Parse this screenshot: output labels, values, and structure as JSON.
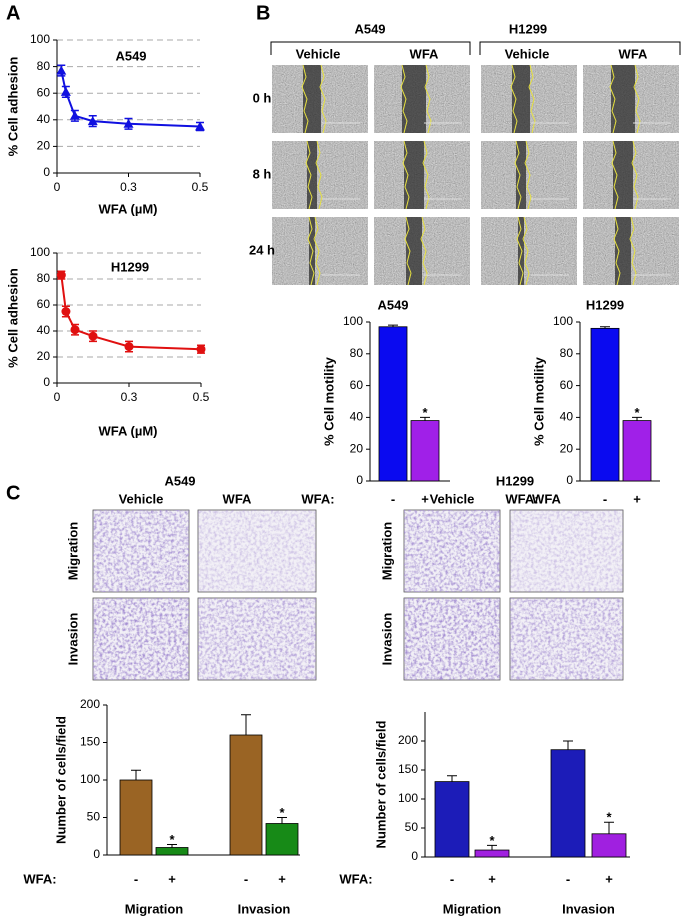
{
  "figure": {
    "panel_labels": [
      "A",
      "B",
      "C"
    ],
    "B": {
      "cell_lines": [
        "A549",
        "H1299"
      ],
      "treatments": [
        "Vehicle",
        "WFA",
        "Vehicle",
        "WFA"
      ],
      "timepoints": [
        "0 h",
        "8 h",
        "24 h"
      ]
    },
    "C": {
      "cell_lines": [
        "A549",
        "H1299"
      ],
      "treatments": [
        "Vehicle",
        "WFA",
        "Vehicle",
        "WFA"
      ],
      "assays": [
        "Migration",
        "Invasion",
        "Migration",
        "Invasion"
      ]
    }
  },
  "chart_data": [
    {
      "type": "line",
      "title": "A549",
      "xlabel": "WFA (µM)",
      "ylabel": "% Cell adhesion",
      "marker": "triangle",
      "color": "#1010e0",
      "x": [
        0.015,
        0.031,
        0.0625,
        0.125,
        0.25,
        0.5
      ],
      "values": [
        77,
        61,
        43,
        39,
        37,
        35
      ],
      "errors": [
        4,
        4,
        4,
        4,
        4,
        3
      ],
      "xlim": [
        0,
        0.5
      ],
      "xticks": [
        0,
        {
          "value": 0.25,
          "label": "0.3"
        },
        0.5
      ],
      "ylim": [
        0,
        100
      ],
      "yticks": [
        0,
        20,
        40,
        60,
        80,
        100
      ],
      "grid": true
    },
    {
      "type": "line",
      "title": "H1299",
      "xlabel": "WFA (µM)",
      "ylabel": "% Cell adhesion",
      "marker": "circle",
      "color": "#e01010",
      "x": [
        0.015,
        0.031,
        0.0625,
        0.125,
        0.25,
        0.5
      ],
      "values": [
        83,
        55,
        41,
        36,
        28,
        26
      ],
      "errors": [
        3,
        4,
        4,
        4,
        4,
        3
      ],
      "xlim": [
        0,
        0.5
      ],
      "xticks": [
        0,
        {
          "value": 0.25,
          "label": "0.3"
        },
        0.5
      ],
      "ylim": [
        0,
        100
      ],
      "yticks": [
        0,
        20,
        40,
        60,
        80,
        100
      ],
      "grid": true
    },
    {
      "type": "bar",
      "title": "A549",
      "xlabel": "WFA:",
      "ylabel": "% Cell motility",
      "categories": [
        "-",
        "+"
      ],
      "values": [
        97,
        38
      ],
      "errors": [
        1,
        2
      ],
      "colors": [
        "#0a0af0",
        "#a020e8"
      ],
      "annotations": [
        null,
        "*"
      ],
      "ylim": [
        0,
        100
      ],
      "yticks": [
        0,
        20,
        40,
        60,
        80,
        100
      ]
    },
    {
      "type": "bar",
      "title": "H1299",
      "xlabel": "WFA:",
      "ylabel": "% Cell motility",
      "categories": [
        "-",
        "+"
      ],
      "values": [
        96,
        38
      ],
      "errors": [
        1,
        2
      ],
      "colors": [
        "#0a0af0",
        "#a020e8"
      ],
      "annotations": [
        null,
        "*"
      ],
      "ylim": [
        0,
        100
      ],
      "yticks": [
        0,
        20,
        40,
        60,
        80,
        100
      ]
    },
    {
      "type": "bar",
      "xlabel": "WFA:",
      "ylabel": "Number of cells/field",
      "categories": [
        "-",
        "+",
        "-",
        "+"
      ],
      "groups": [
        "Migration",
        "Invasion"
      ],
      "values": [
        100,
        10,
        160,
        42
      ],
      "errors": [
        13,
        4,
        27,
        8
      ],
      "colors": [
        "#9a6424",
        "#178a17",
        "#9a6424",
        "#178a17"
      ],
      "annotations": [
        null,
        "*",
        null,
        "*"
      ],
      "ylim": [
        0,
        200
      ],
      "yticks": [
        0,
        50,
        100,
        150,
        200
      ]
    },
    {
      "type": "bar",
      "xlabel": "WFA:",
      "ylabel": "Number of cells/field",
      "categories": [
        "-",
        "+",
        "-",
        "+"
      ],
      "groups": [
        "Migration",
        "Invasion"
      ],
      "values": [
        130,
        12,
        185,
        40
      ],
      "errors": [
        10,
        8,
        15,
        20
      ],
      "colors": [
        "#1c1cb8",
        "#a020e0",
        "#1c1cb8",
        "#a020e0"
      ],
      "annotations": [
        null,
        "*",
        null,
        "*"
      ],
      "ylim": [
        0,
        250
      ],
      "yticks": [
        0,
        50,
        100,
        150,
        200
      ]
    }
  ]
}
